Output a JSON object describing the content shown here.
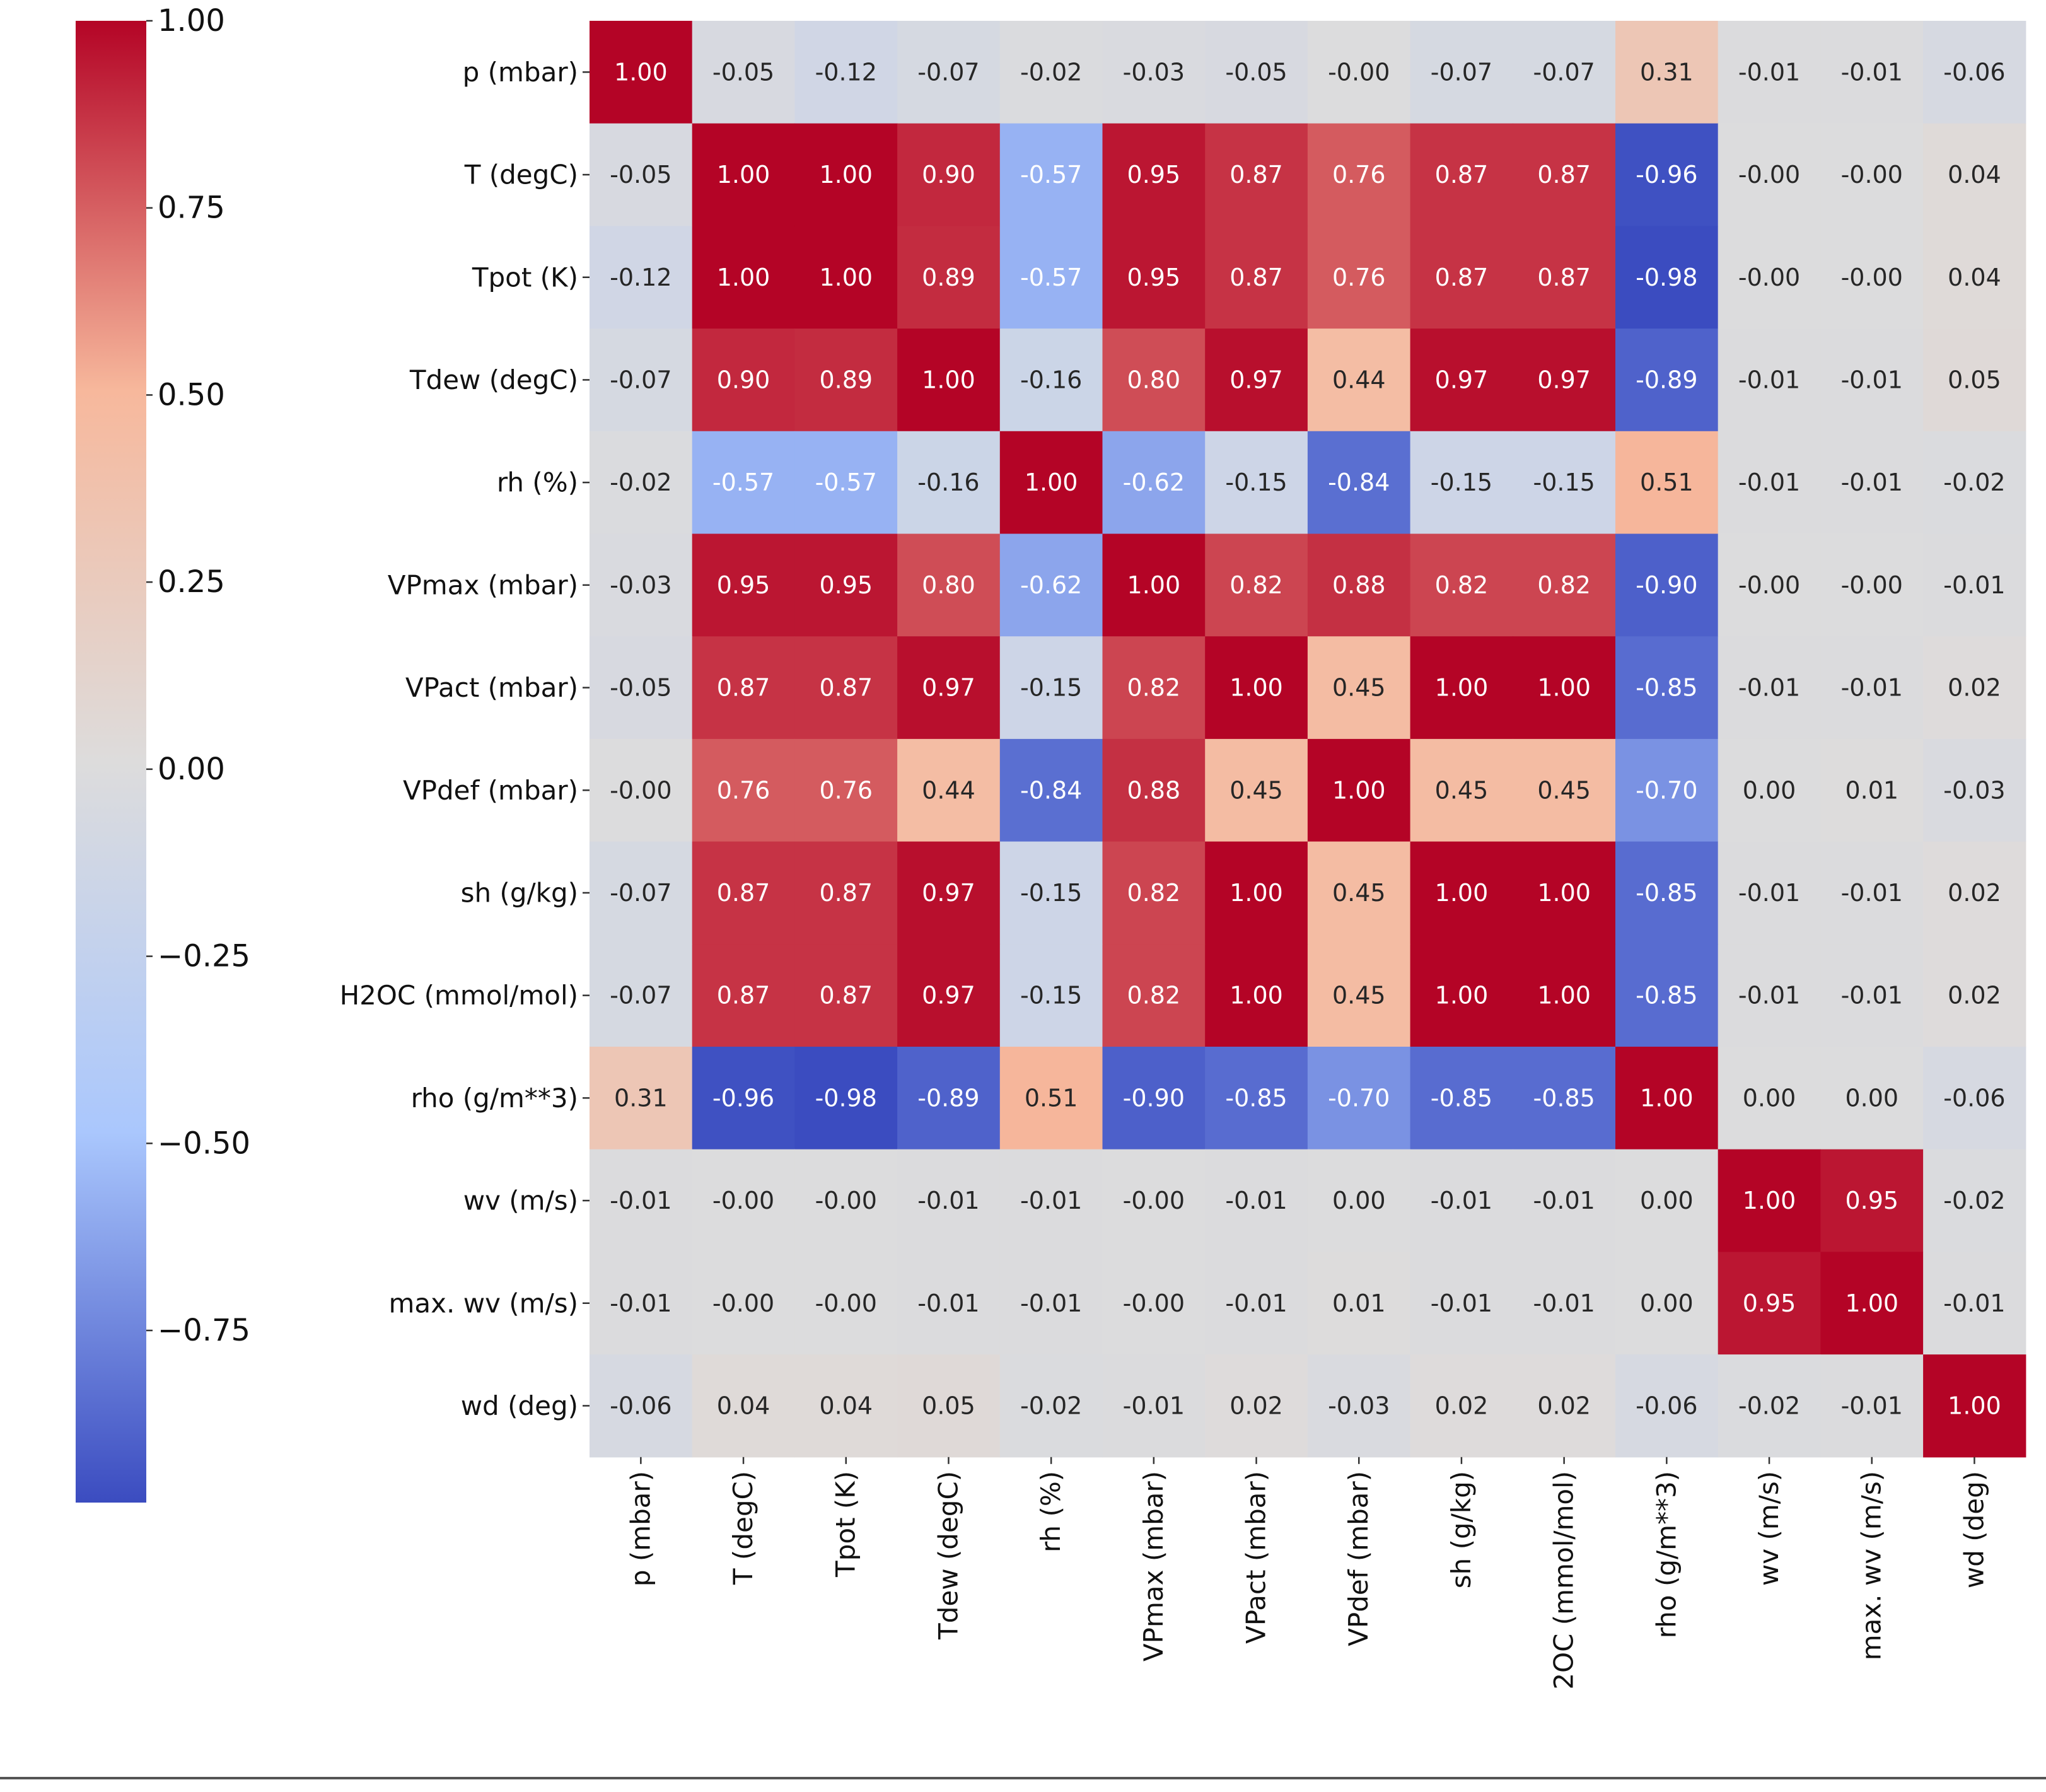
{
  "chart_data": {
    "type": "heatmap",
    "title": "",
    "xlabel": "",
    "ylabel": "",
    "colormap": "coolwarm",
    "colormap_stops": [
      "#3b4cc0",
      "#aac7fd",
      "#dddcdc",
      "#f7b89c",
      "#b40426"
    ],
    "vmin": -0.98,
    "vmax": 1.0,
    "legend_position": "left",
    "row_labels": [
      "p (mbar)",
      "T (degC)",
      "Tpot (K)",
      "Tdew (degC)",
      "rh (%)",
      "VPmax (mbar)",
      "VPact (mbar)",
      "VPdef (mbar)",
      "sh (g/kg)",
      "H2OC (mmol/mol)",
      "rho (g/m**3)",
      "wv (m/s)",
      "max. wv (m/s)",
      "wd (deg)"
    ],
    "col_labels": [
      "p (mbar)",
      "T (degC)",
      "Tpot (K)",
      "Tdew (degC)",
      "rh (%)",
      "VPmax (mbar)",
      "VPact (mbar)",
      "VPdef (mbar)",
      "sh (g/kg)",
      "2OC (mmol/mol)",
      "rho (g/m**3)",
      "wv (m/s)",
      "max. wv (m/s)",
      "wd (deg)"
    ],
    "cell_labels": [
      [
        "1.00",
        "-0.05",
        "-0.12",
        "-0.07",
        "-0.02",
        "-0.03",
        "-0.05",
        "-0.00",
        "-0.07",
        "-0.07",
        "0.31",
        "-0.01",
        "-0.01",
        "-0.06"
      ],
      [
        "-0.05",
        "1.00",
        "1.00",
        "0.90",
        "-0.57",
        "0.95",
        "0.87",
        "0.76",
        "0.87",
        "0.87",
        "-0.96",
        "-0.00",
        "-0.00",
        "0.04"
      ],
      [
        "-0.12",
        "1.00",
        "1.00",
        "0.89",
        "-0.57",
        "0.95",
        "0.87",
        "0.76",
        "0.87",
        "0.87",
        "-0.98",
        "-0.00",
        "-0.00",
        "0.04"
      ],
      [
        "-0.07",
        "0.90",
        "0.89",
        "1.00",
        "-0.16",
        "0.80",
        "0.97",
        "0.44",
        "0.97",
        "0.97",
        "-0.89",
        "-0.01",
        "-0.01",
        "0.05"
      ],
      [
        "-0.02",
        "-0.57",
        "-0.57",
        "-0.16",
        "1.00",
        "-0.62",
        "-0.15",
        "-0.84",
        "-0.15",
        "-0.15",
        "0.51",
        "-0.01",
        "-0.01",
        "-0.02"
      ],
      [
        "-0.03",
        "0.95",
        "0.95",
        "0.80",
        "-0.62",
        "1.00",
        "0.82",
        "0.88",
        "0.82",
        "0.82",
        "-0.90",
        "-0.00",
        "-0.00",
        "-0.01"
      ],
      [
        "-0.05",
        "0.87",
        "0.87",
        "0.97",
        "-0.15",
        "0.82",
        "1.00",
        "0.45",
        "1.00",
        "1.00",
        "-0.85",
        "-0.01",
        "-0.01",
        "0.02"
      ],
      [
        "-0.00",
        "0.76",
        "0.76",
        "0.44",
        "-0.84",
        "0.88",
        "0.45",
        "1.00",
        "0.45",
        "0.45",
        "-0.70",
        "0.00",
        "0.01",
        "-0.03"
      ],
      [
        "-0.07",
        "0.87",
        "0.87",
        "0.97",
        "-0.15",
        "0.82",
        "1.00",
        "0.45",
        "1.00",
        "1.00",
        "-0.85",
        "-0.01",
        "-0.01",
        "0.02"
      ],
      [
        "-0.07",
        "0.87",
        "0.87",
        "0.97",
        "-0.15",
        "0.82",
        "1.00",
        "0.45",
        "1.00",
        "1.00",
        "-0.85",
        "-0.01",
        "-0.01",
        "0.02"
      ],
      [
        "0.31",
        "-0.96",
        "-0.98",
        "-0.89",
        "0.51",
        "-0.90",
        "-0.85",
        "-0.70",
        "-0.85",
        "-0.85",
        "1.00",
        "0.00",
        "0.00",
        "-0.06"
      ],
      [
        "-0.01",
        "-0.00",
        "-0.00",
        "-0.01",
        "-0.01",
        "-0.00",
        "-0.01",
        "0.00",
        "-0.01",
        "-0.01",
        "0.00",
        "1.00",
        "0.95",
        "-0.02"
      ],
      [
        "-0.01",
        "-0.00",
        "-0.00",
        "-0.01",
        "-0.01",
        "-0.00",
        "-0.01",
        "0.01",
        "-0.01",
        "-0.01",
        "0.00",
        "0.95",
        "1.00",
        "-0.01"
      ],
      [
        "-0.06",
        "0.04",
        "0.04",
        "0.05",
        "-0.02",
        "-0.01",
        "0.02",
        "-0.03",
        "0.02",
        "0.02",
        "-0.06",
        "-0.02",
        "-0.01",
        "1.00"
      ]
    ],
    "colorbar": {
      "ticks": [
        1.0,
        0.75,
        0.5,
        0.25,
        0.0,
        -0.25,
        -0.5,
        -0.75
      ],
      "tick_labels": [
        "1.00",
        "0.75",
        "0.50",
        "0.25",
        "0.00",
        "−0.25",
        "−0.50",
        "−0.75"
      ]
    }
  }
}
